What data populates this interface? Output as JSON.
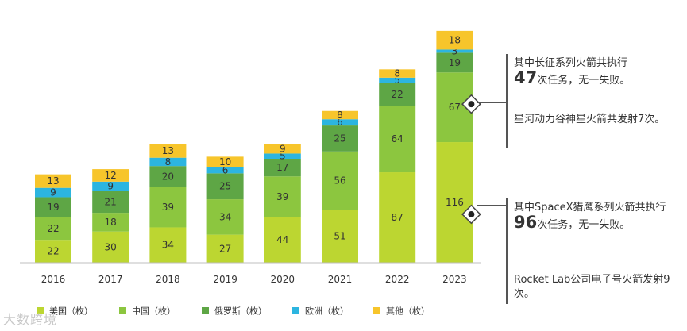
{
  "chart_data": {
    "type": "bar",
    "stacked": true,
    "categories": [
      "2016",
      "2017",
      "2018",
      "2019",
      "2020",
      "2021",
      "2022",
      "2023"
    ],
    "series": [
      {
        "name": "美国（枚）",
        "color": "#bcd631",
        "values": [
          22,
          30,
          34,
          27,
          44,
          51,
          87,
          116
        ]
      },
      {
        "name": "中国（枚）",
        "color": "#8cc63f",
        "values": [
          22,
          18,
          39,
          34,
          39,
          56,
          64,
          67
        ]
      },
      {
        "name": "俄罗斯（枚）",
        "color": "#5ea645",
        "values": [
          19,
          21,
          20,
          25,
          17,
          25,
          22,
          19
        ]
      },
      {
        "name": "欧洲（枚）",
        "color": "#2cb5e0",
        "values": [
          9,
          9,
          8,
          6,
          5,
          6,
          5,
          3
        ]
      },
      {
        "name": "其他（枚）",
        "color": "#f7c52b",
        "values": [
          13,
          12,
          13,
          10,
          9,
          8,
          8,
          18
        ]
      }
    ],
    "legend_position": "bottom",
    "grid": false
  },
  "annotations": {
    "top": {
      "line1": "其中长征系列火箭共执行",
      "num": "47",
      "rest": "次任务，无一失败。"
    },
    "top2": "星河动力谷神星火箭共发射7次。",
    "bottom": {
      "line1": "其中SpaceX猎鹰系列火箭共执行",
      "num": "96",
      "rest": "次任务，无一失败。"
    },
    "bottom2": "Rocket Lab公司电子号火箭发射9次。"
  },
  "watermark": "大数跨境"
}
